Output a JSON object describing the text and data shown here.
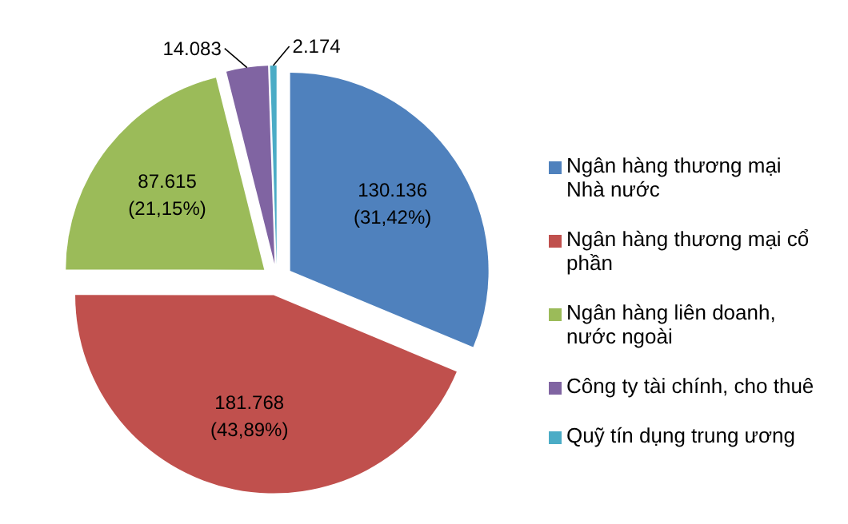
{
  "chart_data": {
    "type": "pie",
    "categories": [
      "Ngân hàng thương mại Nhà nước",
      "Ngân hàng thương mại cổ phần",
      "Ngân hàng liên doanh, nước ngoài",
      "Công ty tài chính, cho thuê",
      "Quỹ tín dụng trung ương"
    ],
    "values": [
      130136,
      181768,
      87615,
      14083,
      2174
    ],
    "colors": [
      "#4f81bd",
      "#c0504d",
      "#9bbb59",
      "#8064a2",
      "#4bacc6"
    ],
    "value_labels": [
      "130.136\n(31,42%)",
      "181.768\n(43,89%)",
      "87.615\n(21,15%)",
      "14.083",
      "2.174"
    ],
    "legend": "right"
  }
}
